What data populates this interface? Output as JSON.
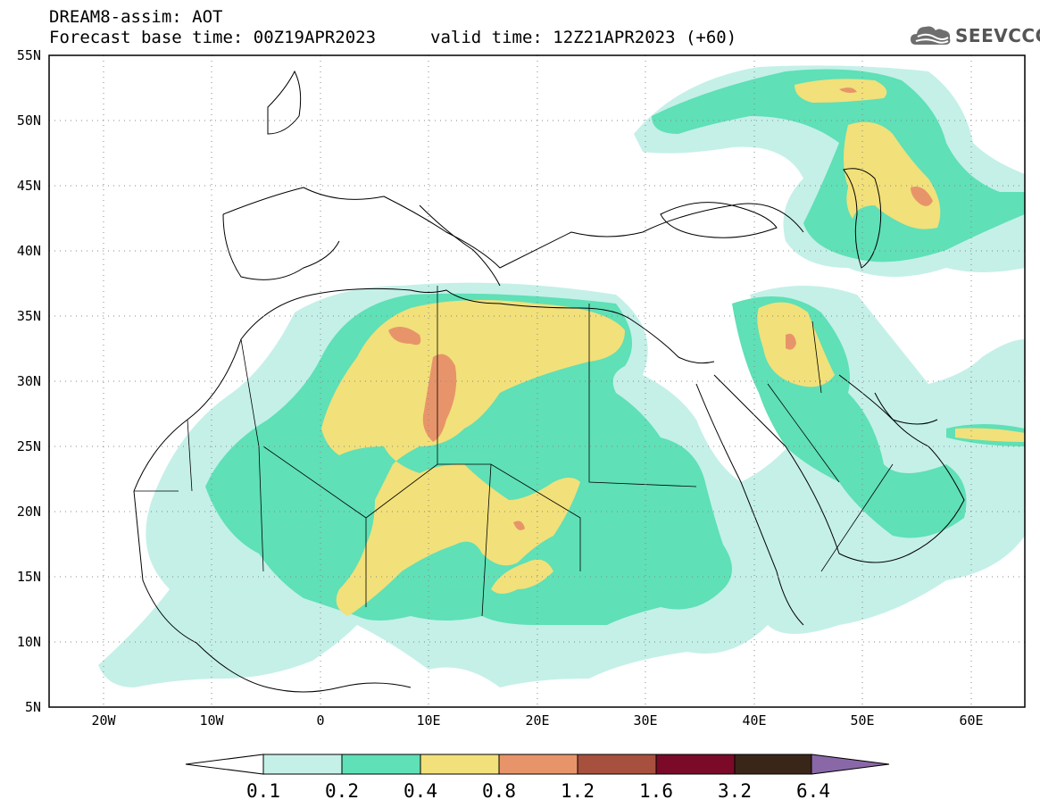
{
  "header": {
    "title": "DREAM8-assim: AOT",
    "base_time": "Forecast base time: 00Z19APR2023",
    "valid_time": "valid time: 12Z21APR2023 (+60)"
  },
  "logo": {
    "text": "SEEVCCC",
    "icon": "cloud-logo-icon"
  },
  "map": {
    "lat_labels": [
      "55N",
      "50N",
      "45N",
      "40N",
      "35N",
      "30N",
      "25N",
      "20N",
      "15N",
      "10N",
      "5N"
    ],
    "lon_labels": [
      "20W",
      "10W",
      "0",
      "10E",
      "20E",
      "30E",
      "40E",
      "50E",
      "60E"
    ],
    "lat_values": [
      55,
      50,
      45,
      40,
      35,
      30,
      25,
      20,
      15,
      10,
      5
    ],
    "lon_values": [
      -20,
      -10,
      0,
      10,
      20,
      30,
      40,
      50,
      60
    ],
    "extent": {
      "lon": [
        -25,
        65
      ],
      "lat": [
        5,
        55
      ]
    },
    "grid": "dotted"
  },
  "colorbar": {
    "labels": [
      "0.1",
      "0.2",
      "0.4",
      "0.8",
      "1.2",
      "1.6",
      "3.2",
      "6.4"
    ],
    "colors": [
      "#c4f0e8",
      "#5fe0b6",
      "#f2e07a",
      "#e8946a",
      "#a8503e",
      "#7a0a28",
      "#3a2618"
    ],
    "under_color": "#ffffff",
    "over_color": "#8a68a8"
  }
}
